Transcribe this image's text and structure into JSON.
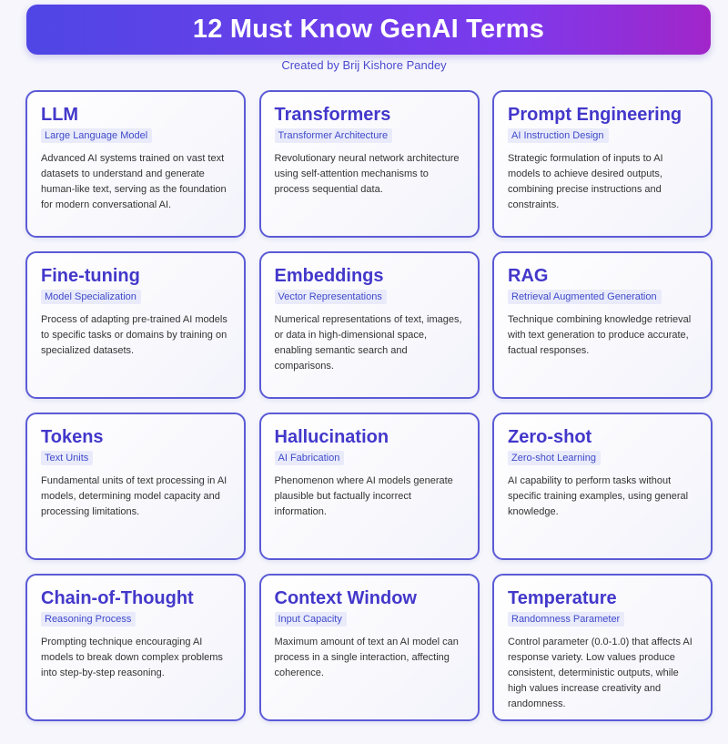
{
  "header": {
    "title": "12 Must Know GenAI Terms",
    "subtitle": "Created by Brij Kishore Pandey"
  },
  "colors": {
    "banner_start": "#4f46e5",
    "banner_end": "#a126c9",
    "accent": "#4338ca",
    "card_border": "#5b5bd6",
    "tag_background": "#e9ebfb"
  },
  "cards": [
    {
      "title": "LLM",
      "tag": "Large Language Model",
      "description": "Advanced AI systems trained on vast text datasets to understand and generate human-like text, serving as the foundation for modern conversational AI."
    },
    {
      "title": "Transformers",
      "tag": "Transformer Architecture",
      "description": "Revolutionary neural network architecture using self-attention mechanisms to process sequential data."
    },
    {
      "title": "Prompt Engineering",
      "tag": "AI Instruction Design",
      "description": "Strategic formulation of inputs to AI models to achieve desired outputs, combining precise instructions and constraints."
    },
    {
      "title": "Fine-tuning",
      "tag": "Model Specialization",
      "description": "Process of adapting pre-trained AI models to specific tasks or domains by training on specialized datasets."
    },
    {
      "title": "Embeddings",
      "tag": "Vector Representations",
      "description": "Numerical representations of text, images, or data in high-dimensional space, enabling semantic search and comparisons."
    },
    {
      "title": "RAG",
      "tag": "Retrieval Augmented Generation",
      "description": "Technique combining knowledge retrieval with text generation to produce accurate, factual responses."
    },
    {
      "title": "Tokens",
      "tag": "Text Units",
      "description": "Fundamental units of text processing in AI models, determining model capacity and processing limitations."
    },
    {
      "title": "Hallucination",
      "tag": "AI Fabrication",
      "description": "Phenomenon where AI models generate plausible but factually incorrect information."
    },
    {
      "title": "Zero-shot",
      "tag": "Zero-shot Learning",
      "description": "AI capability to perform tasks without specific training examples, using general knowledge."
    },
    {
      "title": "Chain-of-Thought",
      "tag": "Reasoning Process",
      "description": "Prompting technique encouraging AI models to break down complex problems into step-by-step reasoning."
    },
    {
      "title": "Context Window",
      "tag": "Input Capacity",
      "description": "Maximum amount of text an AI model can process in a single interaction, affecting coherence."
    },
    {
      "title": "Temperature",
      "tag": "Randomness Parameter",
      "description": "Control parameter (0.0-1.0) that affects AI response variety. Low values produce consistent, deterministic outputs, while high values increase creativity and randomness."
    }
  ]
}
